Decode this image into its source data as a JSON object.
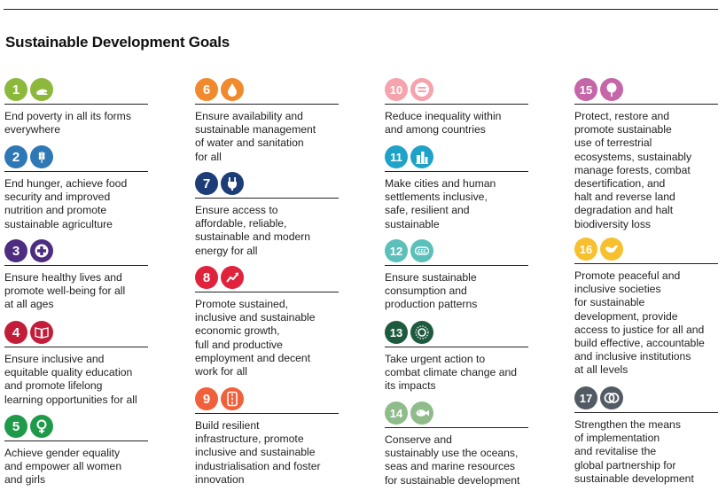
{
  "title": "Sustainable Development Goals",
  "goals": [
    {
      "number": "1",
      "text": "End poverty in all its forms\neverywhere",
      "color": "#8cb83c",
      "icon": "hand-icon"
    },
    {
      "number": "2",
      "text": "End hunger, achieve food\nsecurity and improved\nnutrition and promote\nsustainable agriculture",
      "color": "#2e78b5",
      "icon": "wheat-icon"
    },
    {
      "number": "3",
      "text": "Ensure healthy lives and\npromote well-being for all\nat all ages",
      "color": "#4d2d7f",
      "icon": "cross-icon"
    },
    {
      "number": "4",
      "text": "Ensure inclusive and\nequitable quality education\nand promote lifelong\nlearning opportunities for all",
      "color": "#c21e3a",
      "icon": "book-icon"
    },
    {
      "number": "5",
      "text": "Achieve gender equality\nand empower all women\nand girls",
      "color": "#1f9a4b",
      "icon": "female-symbol-icon"
    },
    {
      "number": "6",
      "text": "Ensure availability and\nsustainable management\nof water and sanitation\nfor all",
      "color": "#f08a2c",
      "icon": "water-drop-icon"
    },
    {
      "number": "7",
      "text": "Ensure access to\naffordable, reliable,\nsustainable and modern\nenergy for all",
      "color": "#1d3d78",
      "icon": "plug-icon"
    },
    {
      "number": "8",
      "text": "Promote sustained,\ninclusive and sustainable\neconomic growth,\nfull and productive\nemployment and decent\nwork for all",
      "color": "#e0223c",
      "icon": "growth-arrow-icon"
    },
    {
      "number": "9",
      "text": "Build resilient\ninfrastructure, promote\ninclusive and sustainable\nindustrialisation and foster\ninnovation",
      "color": "#f0603a",
      "icon": "road-icon"
    },
    {
      "number": "10",
      "text": "Reduce inequality within\nand among countries",
      "color": "#f5a3ad",
      "icon": "equals-icon"
    },
    {
      "number": "11",
      "text": "Make cities and human\nsettlements inclusive,\nsafe, resilient and\nsustainable",
      "color": "#1fa2c8",
      "icon": "city-icon"
    },
    {
      "number": "12",
      "text": "Ensure sustainable\nconsumption and\nproduction patterns",
      "color": "#5bbfba",
      "icon": "money-icon"
    },
    {
      "number": "13",
      "text": "Take urgent action to\ncombat climate change and\nits impacts",
      "color": "#1e5a3e",
      "icon": "sun-icon"
    },
    {
      "number": "14",
      "text": "Conserve and\nsustainably use the oceans,\nseas and marine resources\nfor sustainable development",
      "color": "#8fbc8a",
      "icon": "fish-icon"
    },
    {
      "number": "15",
      "text": "Protect, restore and\npromote sustainable\nuse of terrestrial\necosystems, sustainably\nmanage forests, combat\ndesertification, and\nhalt and reverse land\ndegradation and halt\nbiodiversity loss",
      "color": "#c566a8",
      "icon": "tree-icon"
    },
    {
      "number": "16",
      "text": "Promote peaceful and\ninclusive societies\nfor sustainable\ndevelopment, provide\naccess to justice for all and\nbuild effective, accountable\nand inclusive institutions\nat all levels",
      "color": "#f6c02e",
      "icon": "dove-icon"
    },
    {
      "number": "17",
      "text": "Strengthen the means\nof implementation\nand revitalise the\nglobal partnership for\nsustainable development",
      "color": "#525a63",
      "icon": "rings-icon"
    }
  ]
}
